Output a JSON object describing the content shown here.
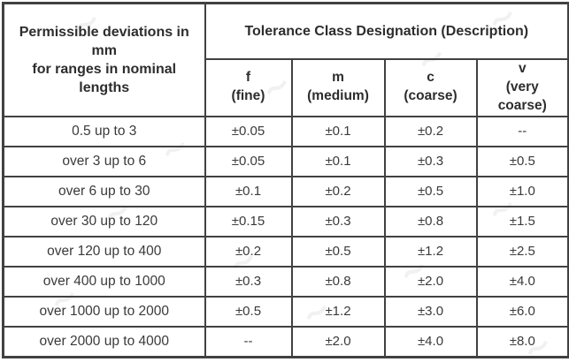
{
  "colors": {
    "border": "#414141",
    "header_text": "#2d2d2d",
    "body_text": "#3a3a3a",
    "background": "#ffffff",
    "watermark": "#e7e7e7"
  },
  "table": {
    "corner_header_line1": "Permissible deviations in mm",
    "corner_header_line2": "for ranges in nominal lengths",
    "group_header": "Tolerance Class Designation (Description)",
    "tolerance_classes": [
      {
        "symbol": "f",
        "label": "(fine)"
      },
      {
        "symbol": "m",
        "label": "(medium)"
      },
      {
        "symbol": "c",
        "label": "(coarse)"
      },
      {
        "symbol": "v",
        "label": "(very coarse)"
      }
    ]
  },
  "chart_data": {
    "type": "table",
    "title": "Tolerance Class Designation (Description)",
    "row_header": "Permissible deviations in mm for ranges in nominal lengths",
    "columns": [
      "f (fine)",
      "m (medium)",
      "c (coarse)",
      "v (very coarse)"
    ],
    "rows": [
      {
        "range": "0.5 up to 3",
        "values": [
          "±0.05",
          "±0.1",
          "±0.2",
          "--"
        ]
      },
      {
        "range": "over 3 up to 6",
        "values": [
          "±0.05",
          "±0.1",
          "±0.3",
          "±0.5"
        ]
      },
      {
        "range": "over 6 up to 30",
        "values": [
          "±0.1",
          "±0.2",
          "±0.5",
          "±1.0"
        ]
      },
      {
        "range": "over 30 up to 120",
        "values": [
          "±0.15",
          "±0.3",
          "±0.8",
          "±1.5"
        ]
      },
      {
        "range": "over 120 up to 400",
        "values": [
          "±0.2",
          "±0.5",
          "±1.2",
          "±2.5"
        ]
      },
      {
        "range": "over 400 up to 1000",
        "values": [
          "±0.3",
          "±0.8",
          "±2.0",
          "±4.0"
        ]
      },
      {
        "range": "over 1000 up to 2000",
        "values": [
          "±0.5",
          "±1.2",
          "±3.0",
          "±6.0"
        ]
      },
      {
        "range": "over 2000 up to 4000",
        "values": [
          "--",
          "±2.0",
          "±4.0",
          "±8.0"
        ]
      }
    ]
  }
}
